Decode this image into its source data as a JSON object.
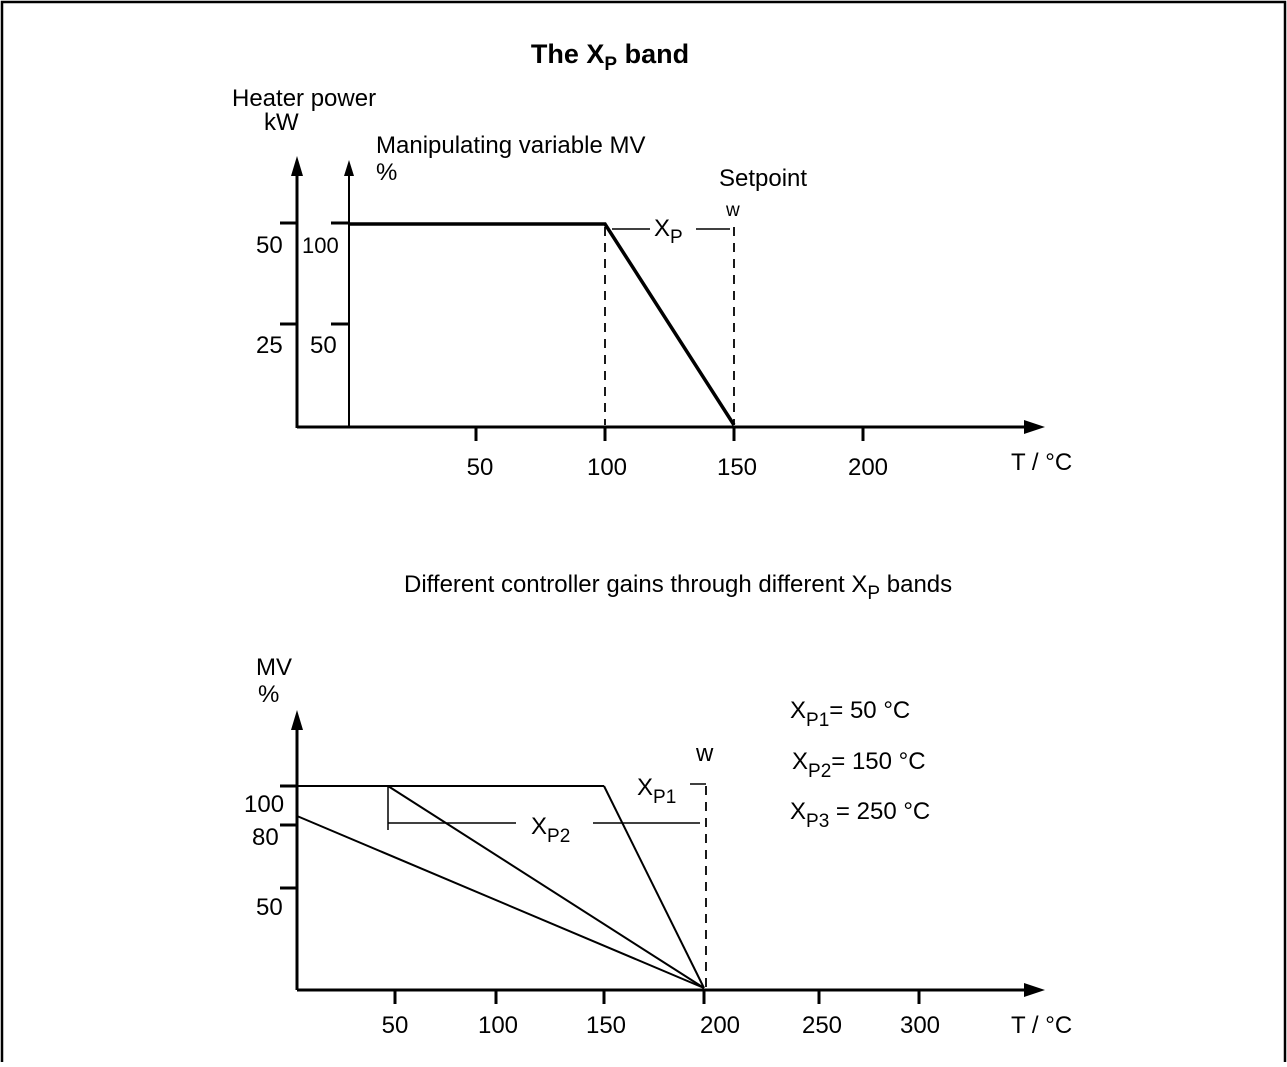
{
  "title": {
    "main": "The X",
    "sub": "P",
    "rest": " band"
  },
  "top_chart": {
    "heater_axis_label_1": "Heater power",
    "heater_axis_label_2": "kW",
    "mv_axis_label_1": "Manipulating variable MV",
    "mv_axis_label_2": "%",
    "heater_ticks": [
      "50",
      "25"
    ],
    "mv_ticks": [
      "100",
      "50"
    ],
    "x_ticks": [
      "50",
      "100",
      "150",
      "200"
    ],
    "x_axis_label": "T / °C",
    "setpoint_label": "Setpoint",
    "w_label": "w",
    "xp_main": "X",
    "xp_sub": "P"
  },
  "caption": {
    "main": "Different controller gains through different X",
    "sub": "P",
    "rest": "  bands"
  },
  "bottom_chart": {
    "y_axis_label_1": "MV",
    "y_axis_label_2": "%",
    "y_ticks": [
      "100",
      "80",
      "50"
    ],
    "x_ticks": [
      "50",
      "100",
      "150",
      "200",
      "250",
      "300"
    ],
    "x_axis_label": "T / °C",
    "w_label": "w",
    "xp1_main": "X",
    "xp1_sub": "P1",
    "xp2_main": "X",
    "xp2_sub": "P2",
    "legend": [
      {
        "main": "X",
        "sub": "P1",
        "rest": "=   50 °C"
      },
      {
        "main": "X",
        "sub": "P2",
        "rest": "= 150 °C"
      },
      {
        "main": "X",
        "sub": "P3",
        "rest": " = 250 °C"
      }
    ]
  },
  "chart_data": [
    {
      "type": "line",
      "xlabel": "T / °C",
      "ylabel": "Manipulating variable MV %",
      "xlim": [
        0,
        200
      ],
      "ylim": [
        0,
        100
      ],
      "series": [
        {
          "x": [
            0,
            100,
            150,
            200
          ],
          "y": [
            100,
            100,
            0,
            0
          ]
        }
      ],
      "setpoint": 150
    },
    {
      "type": "line",
      "xlabel": "T / °C",
      "ylabel": "MV %",
      "xlim": [
        0,
        300
      ],
      "ylim": [
        0,
        100
      ],
      "series": [
        {
          "name": "XP1",
          "x": [
            0,
            150,
            200,
            300
          ],
          "y": [
            100,
            100,
            0,
            0
          ]
        },
        {
          "name": "XP2",
          "x": [
            0,
            50,
            200
          ],
          "y": [
            100,
            100,
            0
          ]
        },
        {
          "name": "XP3",
          "x": [
            0,
            200,
            300
          ],
          "y": [
            80,
            0,
            0
          ]
        }
      ],
      "setpoint": 200
    }
  ]
}
